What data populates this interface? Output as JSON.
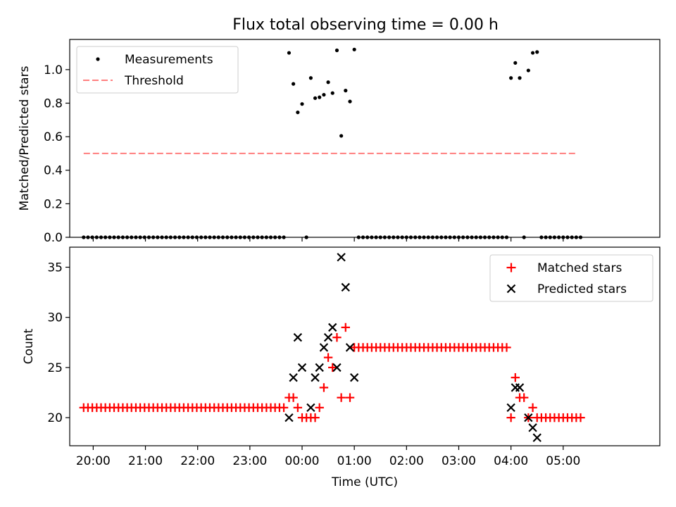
{
  "chart_data": [
    {
      "type": "scatter",
      "title": "Flux total observing time = 0.00 h",
      "xlabel": "",
      "ylabel": "Matched/Predicted stars",
      "xlim": [
        -4.45,
        6.85
      ],
      "ylim": [
        0.0,
        1.18
      ],
      "x_tick_values": [
        -4,
        -3,
        -2,
        -1,
        0,
        1,
        2,
        3,
        4,
        5
      ],
      "y_ticks": [
        0.0,
        0.2,
        0.4,
        0.6,
        0.8,
        1.0
      ],
      "y_tick_labels": [
        "0.0",
        "0.2",
        "0.4",
        "0.6",
        "0.8",
        "1.0"
      ],
      "legend_position": "upper-left",
      "series": [
        {
          "name": "Measurements",
          "marker": "dot",
          "color": "#000000",
          "points": [
            [
              -4.183,
              0
            ],
            [
              -4.1,
              0
            ],
            [
              -4.017,
              0
            ],
            [
              -3.933,
              0
            ],
            [
              -3.85,
              0
            ],
            [
              -3.767,
              0
            ],
            [
              -3.683,
              0
            ],
            [
              -3.6,
              0
            ],
            [
              -3.517,
              0
            ],
            [
              -3.433,
              0
            ],
            [
              -3.35,
              0
            ],
            [
              -3.267,
              0
            ],
            [
              -3.183,
              0
            ],
            [
              -3.1,
              0
            ],
            [
              -3.017,
              0
            ],
            [
              -2.933,
              0
            ],
            [
              -2.85,
              0
            ],
            [
              -2.767,
              0
            ],
            [
              -2.683,
              0
            ],
            [
              -2.6,
              0
            ],
            [
              -2.517,
              0
            ],
            [
              -2.433,
              0
            ],
            [
              -2.35,
              0
            ],
            [
              -2.267,
              0
            ],
            [
              -2.183,
              0
            ],
            [
              -2.1,
              0
            ],
            [
              -2.017,
              0
            ],
            [
              -1.933,
              0
            ],
            [
              -1.85,
              0
            ],
            [
              -1.767,
              0
            ],
            [
              -1.683,
              0
            ],
            [
              -1.6,
              0
            ],
            [
              -1.517,
              0
            ],
            [
              -1.433,
              0
            ],
            [
              -1.35,
              0
            ],
            [
              -1.267,
              0
            ],
            [
              -1.183,
              0
            ],
            [
              -1.1,
              0
            ],
            [
              -1.017,
              0
            ],
            [
              -0.933,
              0
            ],
            [
              -0.85,
              0
            ],
            [
              -0.767,
              0
            ],
            [
              -0.683,
              0
            ],
            [
              -0.6,
              0
            ],
            [
              -0.517,
              0
            ],
            [
              -0.433,
              0
            ],
            [
              -0.35,
              0
            ],
            [
              -0.25,
              1.1
            ],
            [
              -0.167,
              0.915
            ],
            [
              -0.083,
              0.745
            ],
            [
              0.0,
              0.795
            ],
            [
              0.083,
              0.0
            ],
            [
              0.167,
              0.95
            ],
            [
              0.25,
              0.83
            ],
            [
              0.333,
              0.835
            ],
            [
              0.417,
              0.85
            ],
            [
              0.5,
              0.925
            ],
            [
              0.583,
              0.86
            ],
            [
              0.667,
              1.115
            ],
            [
              0.75,
              0.605
            ],
            [
              0.833,
              0.875
            ],
            [
              0.917,
              0.81
            ],
            [
              1.0,
              1.12
            ],
            [
              1.083,
              0
            ],
            [
              1.167,
              0
            ],
            [
              1.25,
              0
            ],
            [
              1.333,
              0
            ],
            [
              1.417,
              0
            ],
            [
              1.5,
              0
            ],
            [
              1.583,
              0
            ],
            [
              1.667,
              0
            ],
            [
              1.75,
              0
            ],
            [
              1.833,
              0
            ],
            [
              1.917,
              0
            ],
            [
              2.0,
              0
            ],
            [
              2.083,
              0
            ],
            [
              2.167,
              0
            ],
            [
              2.25,
              0
            ],
            [
              2.333,
              0
            ],
            [
              2.417,
              0
            ],
            [
              2.5,
              0
            ],
            [
              2.583,
              0
            ],
            [
              2.667,
              0
            ],
            [
              2.75,
              0
            ],
            [
              2.833,
              0
            ],
            [
              2.917,
              0
            ],
            [
              3.0,
              0
            ],
            [
              3.083,
              0
            ],
            [
              3.167,
              0
            ],
            [
              3.25,
              0
            ],
            [
              3.333,
              0
            ],
            [
              3.417,
              0
            ],
            [
              3.5,
              0
            ],
            [
              3.583,
              0
            ],
            [
              3.667,
              0
            ],
            [
              3.75,
              0
            ],
            [
              3.833,
              0
            ],
            [
              3.917,
              0
            ],
            [
              4.0,
              0.95
            ],
            [
              4.083,
              1.04
            ],
            [
              4.167,
              0.95
            ],
            [
              4.25,
              0.0
            ],
            [
              4.333,
              0.995
            ],
            [
              4.417,
              1.1
            ],
            [
              4.5,
              1.105
            ],
            [
              4.583,
              0
            ],
            [
              4.667,
              0
            ],
            [
              4.75,
              0
            ],
            [
              4.833,
              0
            ],
            [
              4.917,
              0
            ],
            [
              5.0,
              0
            ],
            [
              5.083,
              0
            ],
            [
              5.167,
              0
            ],
            [
              5.25,
              0
            ],
            [
              5.333,
              0
            ]
          ]
        },
        {
          "name": "Threshold",
          "type": "line",
          "style": "dashed",
          "color": "#ff7f7f",
          "points": [
            [
              -4.183,
              0.5
            ],
            [
              5.267,
              0.5
            ]
          ]
        }
      ]
    },
    {
      "type": "scatter",
      "title": "",
      "xlabel": "Time (UTC)",
      "ylabel": "Count",
      "xlim": [
        -4.45,
        6.85
      ],
      "ylim": [
        17.2,
        37.0
      ],
      "x_tick_values": [
        -4,
        -3,
        -2,
        -1,
        0,
        1,
        2,
        3,
        4,
        5
      ],
      "x_tick_labels": [
        "20:00",
        "21:00",
        "22:00",
        "23:00",
        "00:00",
        "01:00",
        "02:00",
        "03:00",
        "04:00",
        "05:00"
      ],
      "y_ticks": [
        20,
        25,
        30,
        35
      ],
      "y_tick_labels": [
        "20",
        "25",
        "30",
        "35"
      ],
      "legend_position": "upper-right",
      "series": [
        {
          "name": "Matched stars",
          "marker": "plus",
          "color": "#ff0000",
          "points": [
            [
              -4.183,
              21
            ],
            [
              -4.1,
              21
            ],
            [
              -4.017,
              21
            ],
            [
              -3.933,
              21
            ],
            [
              -3.85,
              21
            ],
            [
              -3.767,
              21
            ],
            [
              -3.683,
              21
            ],
            [
              -3.6,
              21
            ],
            [
              -3.517,
              21
            ],
            [
              -3.433,
              21
            ],
            [
              -3.35,
              21
            ],
            [
              -3.267,
              21
            ],
            [
              -3.183,
              21
            ],
            [
              -3.1,
              21
            ],
            [
              -3.017,
              21
            ],
            [
              -2.933,
              21
            ],
            [
              -2.85,
              21
            ],
            [
              -2.767,
              21
            ],
            [
              -2.683,
              21
            ],
            [
              -2.6,
              21
            ],
            [
              -2.517,
              21
            ],
            [
              -2.433,
              21
            ],
            [
              -2.35,
              21
            ],
            [
              -2.267,
              21
            ],
            [
              -2.183,
              21
            ],
            [
              -2.1,
              21
            ],
            [
              -2.017,
              21
            ],
            [
              -1.933,
              21
            ],
            [
              -1.85,
              21
            ],
            [
              -1.767,
              21
            ],
            [
              -1.683,
              21
            ],
            [
              -1.6,
              21
            ],
            [
              -1.517,
              21
            ],
            [
              -1.433,
              21
            ],
            [
              -1.35,
              21
            ],
            [
              -1.267,
              21
            ],
            [
              -1.183,
              21
            ],
            [
              -1.1,
              21
            ],
            [
              -1.017,
              21
            ],
            [
              -0.933,
              21
            ],
            [
              -0.85,
              21
            ],
            [
              -0.767,
              21
            ],
            [
              -0.683,
              21
            ],
            [
              -0.6,
              21
            ],
            [
              -0.517,
              21
            ],
            [
              -0.433,
              21
            ],
            [
              -0.35,
              21
            ],
            [
              -0.25,
              22
            ],
            [
              -0.167,
              22
            ],
            [
              -0.083,
              21
            ],
            [
              0.0,
              20
            ],
            [
              0.083,
              20
            ],
            [
              0.167,
              20
            ],
            [
              0.25,
              20
            ],
            [
              0.333,
              21
            ],
            [
              0.417,
              23
            ],
            [
              0.5,
              26
            ],
            [
              0.583,
              25
            ],
            [
              0.667,
              28
            ],
            [
              0.75,
              22
            ],
            [
              0.833,
              29
            ],
            [
              0.917,
              22
            ],
            [
              1.0,
              27
            ],
            [
              1.083,
              27
            ],
            [
              1.167,
              27
            ],
            [
              1.25,
              27
            ],
            [
              1.333,
              27
            ],
            [
              1.417,
              27
            ],
            [
              1.5,
              27
            ],
            [
              1.583,
              27
            ],
            [
              1.667,
              27
            ],
            [
              1.75,
              27
            ],
            [
              1.833,
              27
            ],
            [
              1.917,
              27
            ],
            [
              2.0,
              27
            ],
            [
              2.083,
              27
            ],
            [
              2.167,
              27
            ],
            [
              2.25,
              27
            ],
            [
              2.333,
              27
            ],
            [
              2.417,
              27
            ],
            [
              2.5,
              27
            ],
            [
              2.583,
              27
            ],
            [
              2.667,
              27
            ],
            [
              2.75,
              27
            ],
            [
              2.833,
              27
            ],
            [
              2.917,
              27
            ],
            [
              3.0,
              27
            ],
            [
              3.083,
              27
            ],
            [
              3.167,
              27
            ],
            [
              3.25,
              27
            ],
            [
              3.333,
              27
            ],
            [
              3.417,
              27
            ],
            [
              3.5,
              27
            ],
            [
              3.583,
              27
            ],
            [
              3.667,
              27
            ],
            [
              3.75,
              27
            ],
            [
              3.833,
              27
            ],
            [
              3.917,
              27
            ],
            [
              4.0,
              20
            ],
            [
              4.083,
              24
            ],
            [
              4.167,
              22
            ],
            [
              4.25,
              22
            ],
            [
              4.333,
              20
            ],
            [
              4.417,
              21
            ],
            [
              4.5,
              20
            ],
            [
              4.583,
              20
            ],
            [
              4.667,
              20
            ],
            [
              4.75,
              20
            ],
            [
              4.833,
              20
            ],
            [
              4.917,
              20
            ],
            [
              5.0,
              20
            ],
            [
              5.083,
              20
            ],
            [
              5.167,
              20
            ],
            [
              5.25,
              20
            ],
            [
              5.333,
              20
            ]
          ]
        },
        {
          "name": "Predicted stars",
          "marker": "x",
          "color": "#000000",
          "points": [
            [
              -0.25,
              20
            ],
            [
              -0.167,
              24
            ],
            [
              -0.083,
              28
            ],
            [
              0.0,
              25
            ],
            [
              0.167,
              21
            ],
            [
              0.25,
              24
            ],
            [
              0.333,
              25
            ],
            [
              0.417,
              27
            ],
            [
              0.5,
              28
            ],
            [
              0.583,
              29
            ],
            [
              0.667,
              25
            ],
            [
              0.75,
              36
            ],
            [
              0.833,
              33
            ],
            [
              0.917,
              27
            ],
            [
              1.0,
              24
            ],
            [
              4.0,
              21
            ],
            [
              4.083,
              23
            ],
            [
              4.167,
              23
            ],
            [
              4.333,
              20
            ],
            [
              4.417,
              19
            ],
            [
              4.5,
              18
            ]
          ]
        }
      ]
    }
  ]
}
